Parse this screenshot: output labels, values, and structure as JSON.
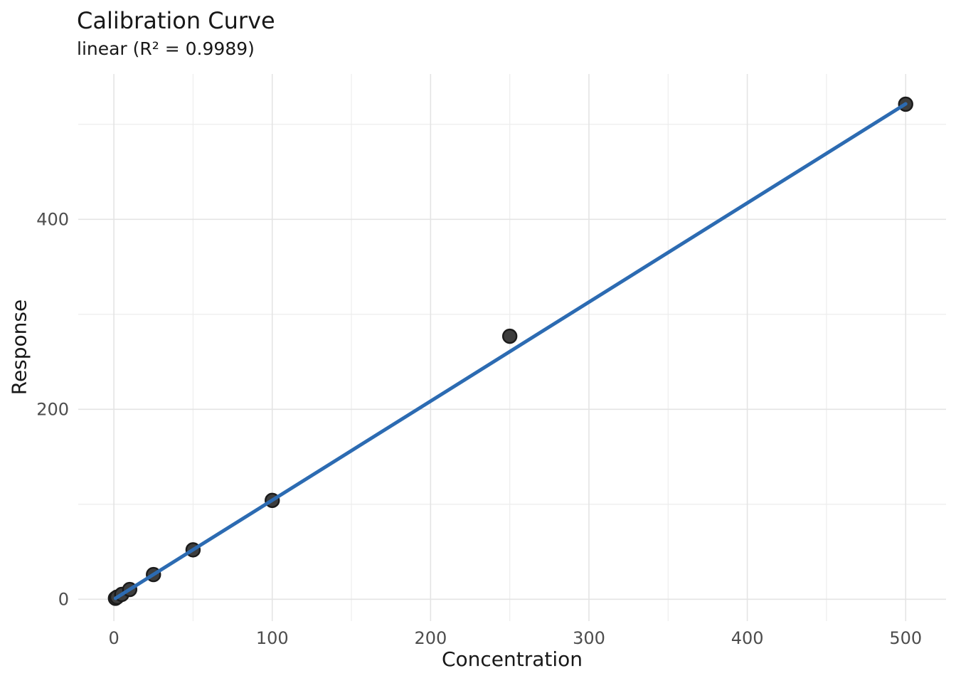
{
  "colors": {
    "background": "#ffffff",
    "grid_major": "#e4e4e4",
    "grid_minor": "#ededed",
    "fit_line": "#2c6bb2",
    "point_fill": "#3d3d3d",
    "point_stroke": "#1b1b1b",
    "tick_text": "#4d4d4d",
    "title_text": "#181818"
  },
  "chart_data": {
    "type": "scatter",
    "title": "Calibration Curve",
    "subtitle": "linear (R² = 0.9989)",
    "model": "linear",
    "r_squared": 0.9989,
    "xlabel": "Concentration",
    "ylabel": "Response",
    "points": [
      {
        "x": 1,
        "y": 1.0
      },
      {
        "x": 2,
        "y": 2.2
      },
      {
        "x": 5,
        "y": 5.1
      },
      {
        "x": 10,
        "y": 10.3
      },
      {
        "x": 25,
        "y": 26.0
      },
      {
        "x": 50,
        "y": 52.0
      },
      {
        "x": 100,
        "y": 104.1
      },
      {
        "x": 250,
        "y": 276.9
      },
      {
        "x": 500,
        "y": 521.2
      }
    ],
    "fit_line": {
      "x": [
        1,
        500
      ],
      "y": [
        1.0,
        521.5
      ]
    },
    "xlim": [
      -22.5,
      525.5
    ],
    "ylim": [
      -23,
      553
    ],
    "x_major_ticks": [
      0,
      100,
      200,
      300,
      400,
      500
    ],
    "x_minor_ticks": [
      50,
      150,
      250,
      350,
      450
    ],
    "y_major_ticks": [
      0,
      200,
      400
    ],
    "y_minor_ticks": [
      100,
      300,
      500
    ],
    "grid": true,
    "legend": "none"
  }
}
